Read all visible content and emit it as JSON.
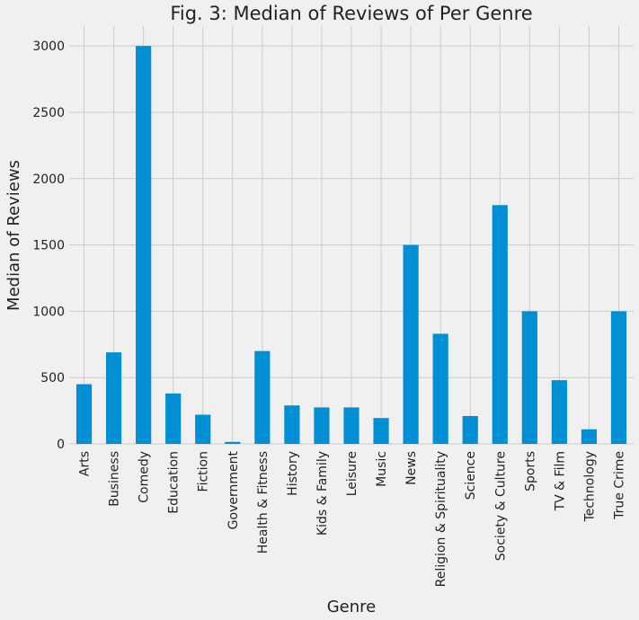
{
  "chart_data": {
    "type": "bar",
    "title": "Fig. 3: Median of Reviews of Per Genre",
    "xlabel": "Genre",
    "ylabel": "Median of Reviews",
    "ylim": [
      0,
      3150
    ],
    "yticks": [
      0,
      500,
      1000,
      1500,
      2000,
      2500,
      3000
    ],
    "grid": true,
    "categories": [
      "Arts",
      "Business",
      "Comedy",
      "Education",
      "Fiction",
      "Government",
      "Health & Fitness",
      "History",
      "Kids & Family",
      "Leisure",
      "Music",
      "News",
      "Religion & Spirituality",
      "Science",
      "Society & Culture",
      "Sports",
      "TV & Film",
      "Technology",
      "True Crime"
    ],
    "values": [
      450,
      690,
      3000,
      380,
      220,
      15,
      700,
      290,
      275,
      275,
      195,
      1500,
      830,
      210,
      1800,
      1000,
      480,
      110,
      1000
    ],
    "color": "#008fd5"
  }
}
